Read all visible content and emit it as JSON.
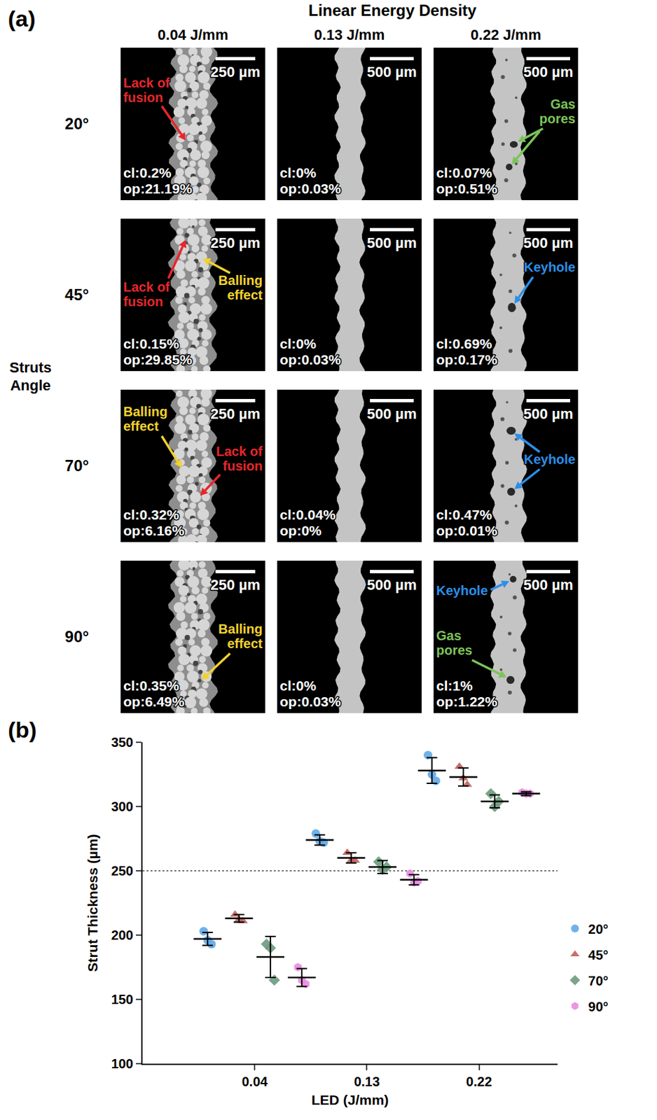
{
  "panel_a": {
    "label": "(a)",
    "column_axis_title": "Linear Energy Density",
    "columns": [
      "0.04 J/mm",
      "0.13 J/mm",
      "0.22 J/mm"
    ],
    "row_axis_title": "Struts Angle",
    "rows": [
      "20°",
      "45°",
      "70°",
      "90°"
    ],
    "cells": [
      [
        {
          "scale_bar": "250 µm",
          "cl": "cl:0.2%",
          "op": "op:21.19%",
          "defects": [
            {
              "text": "Lack of fusion",
              "color": "#e8262b"
            }
          ]
        },
        {
          "scale_bar": "500 µm",
          "cl": "cl:0%",
          "op": "op:0.03%",
          "defects": []
        },
        {
          "scale_bar": "500 µm",
          "cl": "cl:0.07%",
          "op": "op:0.51%",
          "defects": [
            {
              "text": "Gas pores",
              "color": "#7cc35a"
            }
          ]
        }
      ],
      [
        {
          "scale_bar": "250 µm",
          "cl": "cl:0.15%",
          "op": "op:29.85%",
          "defects": [
            {
              "text": "Lack of fusion",
              "color": "#e8262b"
            },
            {
              "text": "Balling effect",
              "color": "#f2d22e"
            }
          ]
        },
        {
          "scale_bar": "500 µm",
          "cl": "cl:0%",
          "op": "op:0.03%",
          "defects": []
        },
        {
          "scale_bar": "500 µm",
          "cl": "cl:0.69%",
          "op": "op:0.17%",
          "defects": [
            {
              "text": "Keyhole",
              "color": "#2b8ee8"
            }
          ]
        }
      ],
      [
        {
          "scale_bar": "250 µm",
          "cl": "cl:0.32%",
          "op": "op:6.16%",
          "defects": [
            {
              "text": "Balling effect",
              "color": "#f2d22e"
            },
            {
              "text": "Lack of fusion",
              "color": "#e8262b"
            }
          ]
        },
        {
          "scale_bar": "500 µm",
          "cl": "cl:0.04%",
          "op": "op:0%",
          "defects": []
        },
        {
          "scale_bar": "500 µm",
          "cl": "cl:0.47%",
          "op": "op:0.01%",
          "defects": [
            {
              "text": "Keyhole",
              "color": "#2b8ee8"
            }
          ]
        }
      ],
      [
        {
          "scale_bar": "250 µm",
          "cl": "cl:0.35%",
          "op": "op:6.49%",
          "defects": [
            {
              "text": "Balling effect",
              "color": "#f2d22e"
            }
          ]
        },
        {
          "scale_bar": "500 µm",
          "cl": "cl:0%",
          "op": "op:0.03%",
          "defects": []
        },
        {
          "scale_bar": "500 µm",
          "cl": "cl:1%",
          "op": "op:1.22%",
          "defects": [
            {
              "text": "Keyhole",
              "color": "#2b8ee8"
            },
            {
              "text": "Gas pores",
              "color": "#7cc35a"
            }
          ]
        }
      ]
    ]
  },
  "panel_b": {
    "label": "(b)"
  },
  "chart_data": {
    "type": "scatter",
    "y_label": "Strut Thickness (µm)",
    "x_label": "LED (J/mm)",
    "categories": [
      "0.04",
      "0.13",
      "0.22"
    ],
    "ylim": [
      100,
      350
    ],
    "yticks": [
      100,
      150,
      200,
      250,
      300,
      350
    ],
    "grid": false,
    "legend": "right",
    "reference_line": 250,
    "series": [
      {
        "name": "20°",
        "color": "#62a8e5",
        "marker": "circle",
        "values": [
          197,
          274,
          328
        ],
        "error": [
          5,
          4,
          10
        ],
        "points": [
          [
            203,
            196,
            193
          ],
          [
            279,
            273,
            272
          ],
          [
            340,
            325,
            320
          ]
        ]
      },
      {
        "name": "45°",
        "color": "#c0605a",
        "marker": "triangle-up",
        "values": [
          213,
          260,
          323
        ],
        "error": [
          3,
          4,
          7
        ],
        "points": [
          [
            216,
            212,
            211
          ],
          [
            264,
            258,
            258
          ],
          [
            331,
            322,
            317
          ]
        ]
      },
      {
        "name": "70°",
        "color": "#6d9a7d",
        "marker": "diamond",
        "values": [
          183,
          253,
          304
        ],
        "error": [
          16,
          5,
          5
        ],
        "points": [
          [
            193,
            190,
            165
          ],
          [
            257,
            251,
            253
          ],
          [
            310,
            300,
            304
          ]
        ]
      },
      {
        "name": "90°",
        "color": "#e88ce0",
        "marker": "hexagon",
        "values": [
          167,
          243,
          310
        ],
        "error": [
          7,
          4,
          1.5
        ],
        "points": [
          [
            175,
            165,
            162
          ],
          [
            248,
            241,
            242
          ],
          [
            311,
            310,
            310
          ]
        ]
      }
    ]
  }
}
